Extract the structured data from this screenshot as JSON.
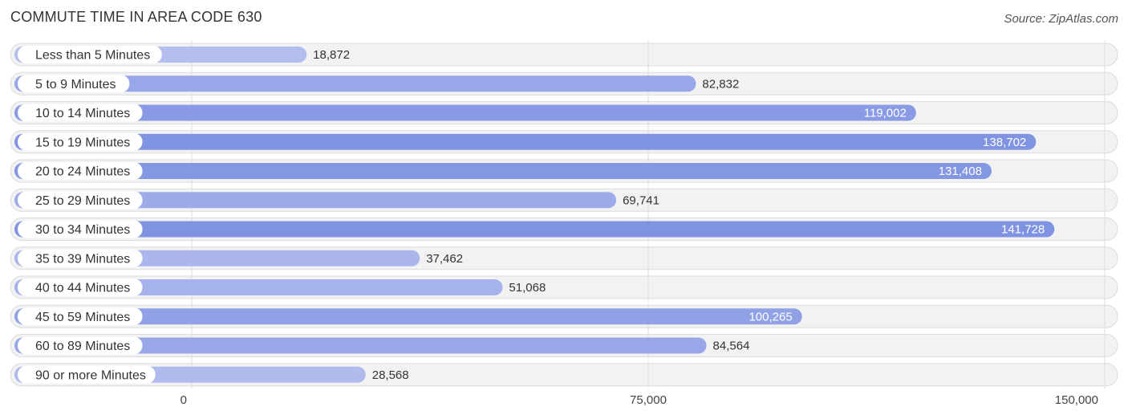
{
  "title": "COMMUTE TIME IN AREA CODE 630",
  "source": "Source: ZipAtlas.com",
  "chart_data": {
    "type": "bar",
    "orientation": "horizontal",
    "title": "COMMUTE TIME IN AREA CODE 630",
    "categories": [
      "Less than 5 Minutes",
      "5 to 9 Minutes",
      "10 to 14 Minutes",
      "15 to 19 Minutes",
      "20 to 24 Minutes",
      "25 to 29 Minutes",
      "30 to 34 Minutes",
      "35 to 39 Minutes",
      "40 to 44 Minutes",
      "45 to 59 Minutes",
      "60 to 89 Minutes",
      "90 or more Minutes"
    ],
    "values": [
      18872,
      82832,
      119002,
      138702,
      131408,
      69741,
      141728,
      37462,
      51068,
      100265,
      84564,
      28568
    ],
    "value_labels": [
      "18,872",
      "82,832",
      "119,002",
      "138,702",
      "131,408",
      "69,741",
      "141,728",
      "37,462",
      "51,068",
      "100,265",
      "84,564",
      "28,568"
    ],
    "xlim": [
      0,
      150000
    ],
    "xticks": [
      0,
      75000,
      150000
    ],
    "xtick_labels": [
      "0",
      "75,000",
      "150,000"
    ],
    "grid": true,
    "colors": {
      "low": "#b3bdee",
      "high": "#7f93e2",
      "track": "#f2f2f2"
    }
  }
}
